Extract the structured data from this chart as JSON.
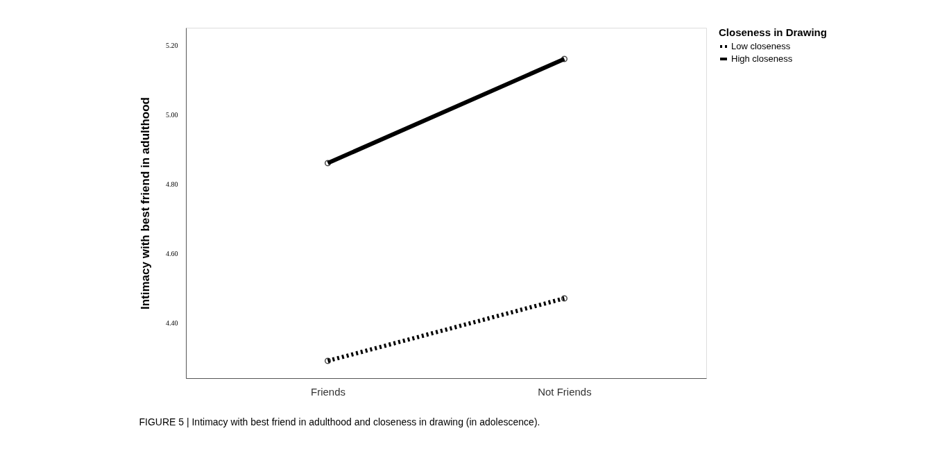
{
  "chart_data": {
    "type": "line",
    "categories": [
      "Friends",
      "Not Friends"
    ],
    "series": [
      {
        "name": "Low closeness",
        "color": "#000000",
        "line_style": "dotted",
        "values": [
          4.29,
          4.47
        ]
      },
      {
        "name": "High closeness",
        "color": "#000000",
        "line_style": "solid",
        "values": [
          4.86,
          5.16
        ]
      }
    ],
    "ylabel": "Intimacy with best friend in adulthood",
    "legend_title": "Closeness in Drawing",
    "legend": "top right",
    "marker": "circle",
    "grid": false,
    "ylim": [
      4.24,
      5.25
    ],
    "yticks": [
      {
        "value": 4.4,
        "label": "4.40"
      },
      {
        "value": 4.6,
        "label": "4.60"
      },
      {
        "value": 4.8,
        "label": "4.80"
      },
      {
        "value": 5.0,
        "label": "5.00"
      },
      {
        "value": 5.2,
        "label": "5.20"
      }
    ],
    "annotations": [
      "FIGURE 5 | Intimacy with best friend in adulthood and closeness in drawing (in adolescence)."
    ]
  }
}
